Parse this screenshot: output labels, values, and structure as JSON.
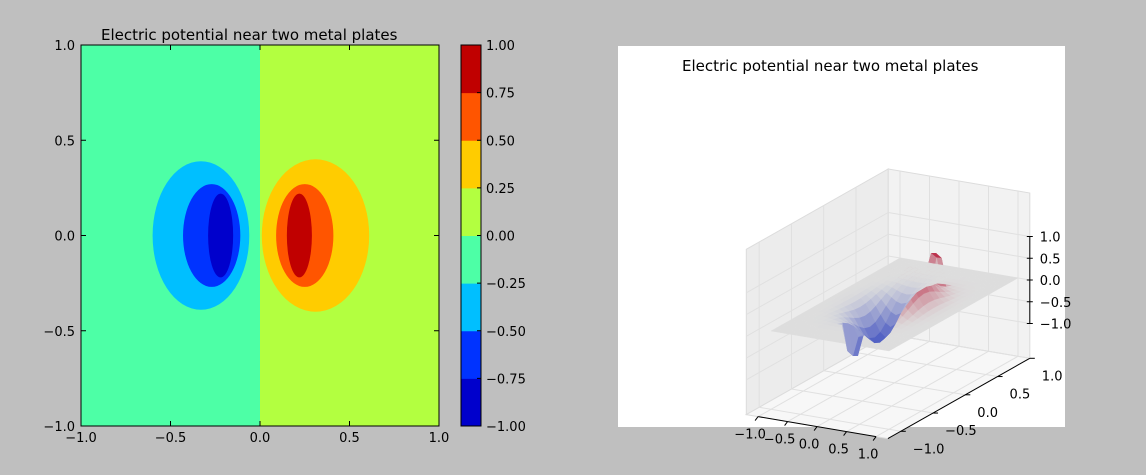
{
  "chart_data": [
    {
      "type": "contourf",
      "title": "Electric potential near two metal plates",
      "x_range": [
        -1.0,
        1.0
      ],
      "y_range": [
        -1.0,
        1.0
      ],
      "x_ticks": [
        "−1.0",
        "−0.5",
        "0.0",
        "0.5",
        "1.0"
      ],
      "x_tick_values": [
        -1.0,
        -0.5,
        0.0,
        0.5,
        1.0
      ],
      "y_ticks": [
        "1.0",
        "0.5",
        "0.0",
        "−0.5",
        "−1.0"
      ],
      "y_tick_values": [
        1.0,
        0.5,
        0.0,
        -0.5,
        -1.0
      ],
      "levels": [
        -1.0,
        -0.75,
        -0.5,
        -0.25,
        0.0,
        0.25,
        0.5,
        0.75,
        1.0
      ],
      "level_colors": [
        "#0000cc",
        "#0033ff",
        "#00bfff",
        "#4dffa6",
        "#b3ff40",
        "#ffcc00",
        "#ff5500",
        "#c00000"
      ],
      "background_left_color": "#4dffa6",
      "background_right_color": "#b3ff40",
      "regions": [
        {
          "level": "-0.50..-0.25",
          "cx": -0.33,
          "cy": 0.0,
          "rx": 0.27,
          "ry": 0.39,
          "color": "#00bfff"
        },
        {
          "level": "-0.75..-0.50",
          "cx": -0.27,
          "cy": 0.0,
          "rx": 0.16,
          "ry": 0.27,
          "color": "#0033ff"
        },
        {
          "level": "-1.00..-0.75",
          "cx": -0.22,
          "cy": 0.0,
          "rx": 0.07,
          "ry": 0.22,
          "color": "#0000cc"
        },
        {
          "level": "0.25..0.50",
          "cx": 0.31,
          "cy": 0.0,
          "rx": 0.3,
          "ry": 0.4,
          "color": "#ffcc00"
        },
        {
          "level": "0.50..0.75",
          "cx": 0.25,
          "cy": 0.0,
          "rx": 0.16,
          "ry": 0.27,
          "color": "#ff5500"
        },
        {
          "level": "0.75..1.00",
          "cx": 0.22,
          "cy": 0.0,
          "rx": 0.07,
          "ry": 0.22,
          "color": "#c00000"
        }
      ]
    },
    {
      "type": "colorbar",
      "ticks": [
        "1.00",
        "0.75",
        "0.50",
        "0.25",
        "0.00",
        "−0.25",
        "−0.50",
        "−0.75",
        "−1.00"
      ],
      "tick_values": [
        1.0,
        0.75,
        0.5,
        0.25,
        0.0,
        -0.25,
        -0.5,
        -0.75,
        -1.0
      ]
    },
    {
      "type": "surface3d",
      "title": "Electric potential near two metal plates",
      "x_ticks": [
        "−1.0",
        "−0.5",
        "0.0",
        "0.5",
        "1.0"
      ],
      "y_ticks": [
        "−1.0",
        "−0.5",
        "0.0",
        "0.5",
        "1.0"
      ],
      "z_ticks": [
        "−1.0",
        "−0.5",
        "0.0",
        "0.5",
        "1.0"
      ],
      "z_range": [
        -1.0,
        1.0
      ],
      "colormap": "coolwarm"
    }
  ]
}
